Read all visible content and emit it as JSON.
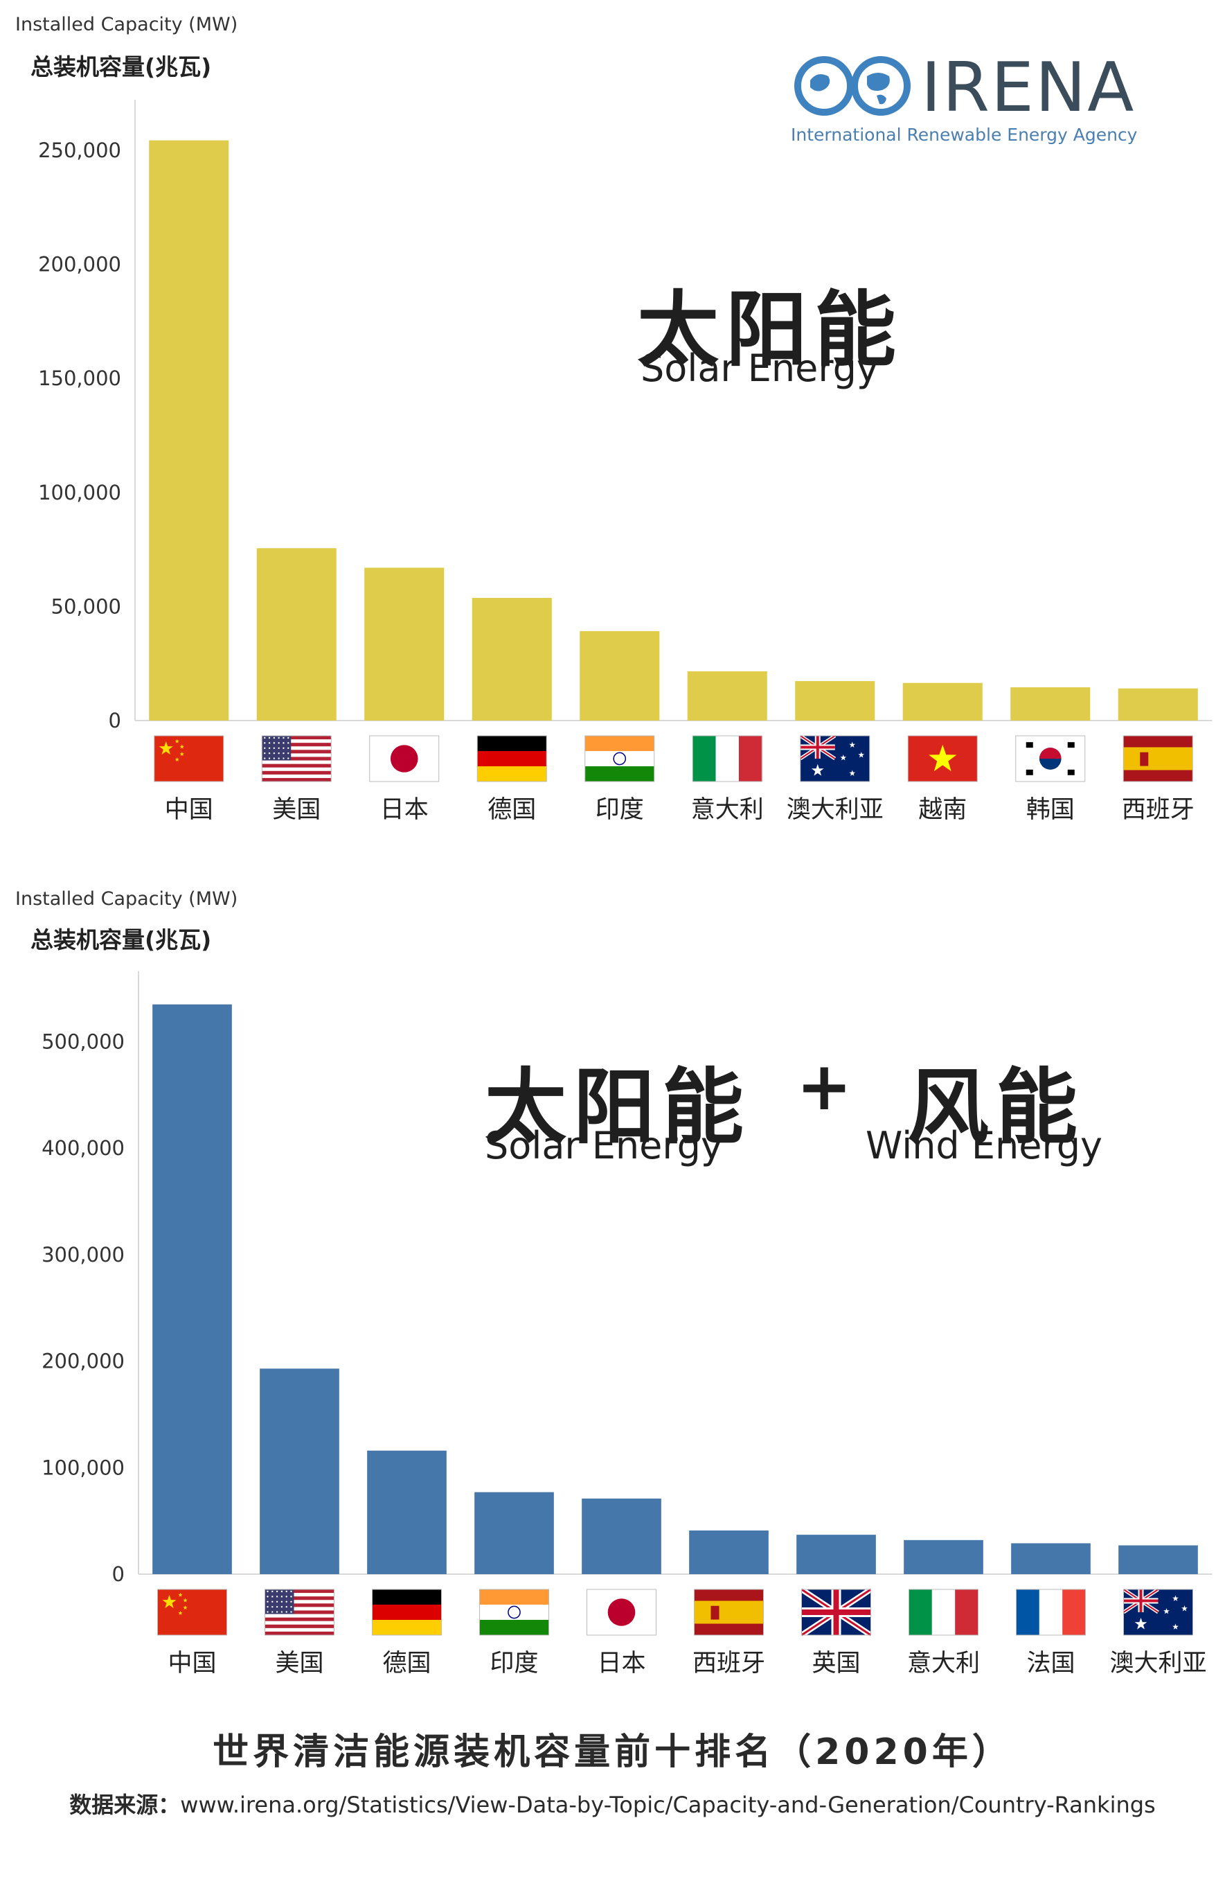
{
  "chart_data": [
    {
      "type": "bar",
      "title": "太阳能",
      "subtitle": "Solar Energy",
      "ylabel": "Installed Capacity (MW)",
      "ylabel_zh": "总装机容量(兆瓦)",
      "ylim": [
        0,
        260000
      ],
      "yticks": [
        0,
        50000,
        100000,
        150000,
        200000,
        250000
      ],
      "ytick_labels": [
        "0",
        "50,000",
        "100,000",
        "150,000",
        "200,000",
        "250,000"
      ],
      "bar_color": "#dfcc4b",
      "categories": [
        "中国",
        "美国",
        "日本",
        "德国",
        "印度",
        "意大利",
        "澳大利亚",
        "越南",
        "韩国",
        "西班牙"
      ],
      "flags": [
        "china",
        "usa",
        "japan",
        "germany",
        "india",
        "italy",
        "australia",
        "vietnam",
        "korea",
        "spain"
      ],
      "values": [
        254355,
        75572,
        67000,
        53783,
        39211,
        21600,
        17300,
        16504,
        14575,
        14089
      ]
    },
    {
      "type": "bar",
      "title": "太阳能",
      "subtitle": "Solar Energy",
      "title2": "风能",
      "subtitle2": "Wind Energy",
      "plus": "+",
      "ylabel": "Installed Capacity (MW)",
      "ylabel_zh": "总装机容量(兆瓦)",
      "ylim": [
        0,
        540000
      ],
      "yticks": [
        0,
        100000,
        200000,
        300000,
        400000,
        500000
      ],
      "ytick_labels": [
        "0",
        "100,000",
        "200,000",
        "300,000",
        "400,000",
        "500,000"
      ],
      "bar_color": "#4677ab",
      "categories": [
        "中国",
        "美国",
        "德国",
        "印度",
        "日本",
        "西班牙",
        "英国",
        "意大利",
        "法国",
        "澳大利亚"
      ],
      "flags": [
        "china",
        "usa",
        "germany",
        "india",
        "japan",
        "spain",
        "uk",
        "italy",
        "france",
        "australia"
      ],
      "values": [
        535000,
        193000,
        116000,
        77000,
        71000,
        41000,
        37000,
        32000,
        29000,
        27000
      ]
    }
  ],
  "logo": {
    "name": "IRENA",
    "subtitle": "International Renewable Energy Agency",
    "colors": {
      "globe": "#3f82c0",
      "text": "#3b4c5a",
      "sub": "#4a7fb0"
    }
  },
  "footer": {
    "title": "世界清洁能源装机容量前十排名（2020年）",
    "source_label": "数据来源：",
    "source_url": "www.irena.org/Statistics/View-Data-by-Topic/Capacity-and-Generation/Country-Rankings"
  }
}
